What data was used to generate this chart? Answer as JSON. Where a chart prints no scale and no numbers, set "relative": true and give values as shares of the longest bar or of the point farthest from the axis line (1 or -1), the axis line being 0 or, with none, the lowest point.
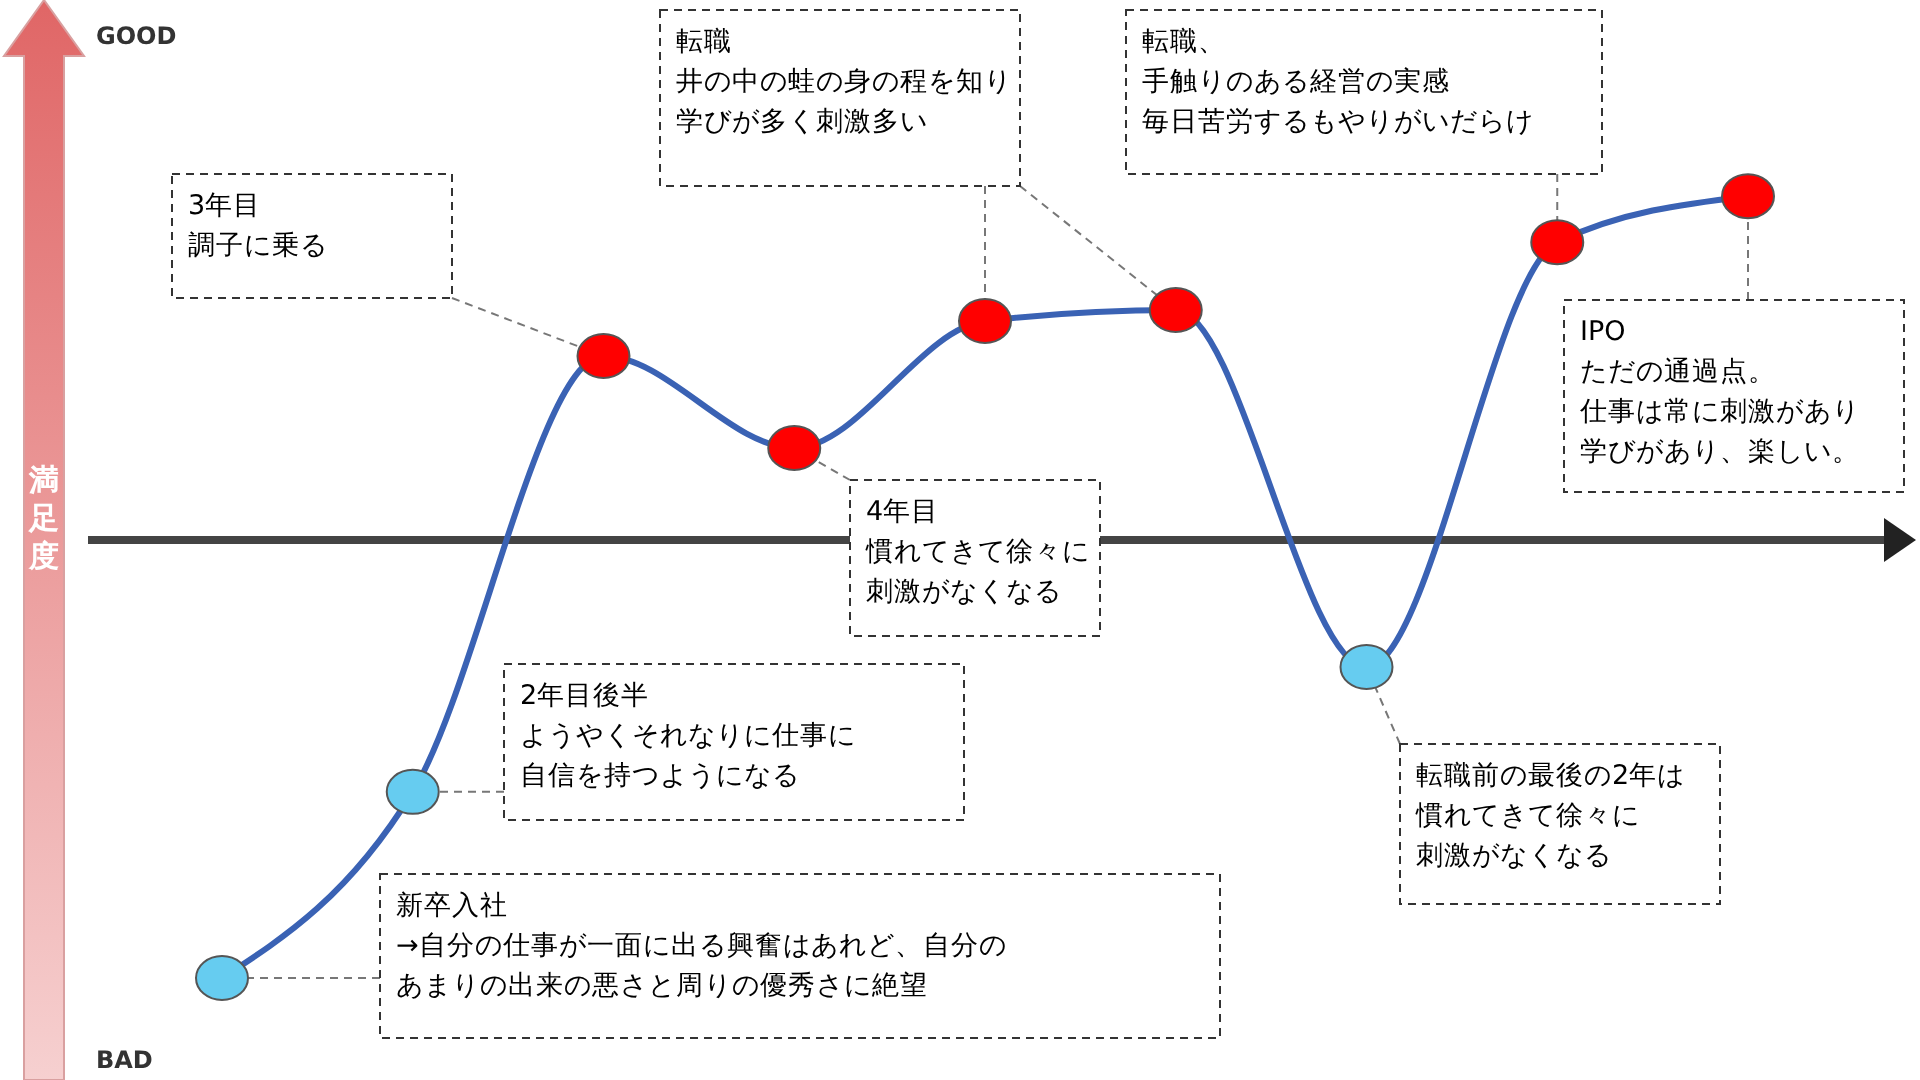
{
  "chart_data": {
    "type": "line",
    "relative": true,
    "ylabel": "満足度",
    "marker": "circle",
    "categories": [
      null,
      null,
      null,
      null,
      null,
      null,
      null,
      null,
      null
    ],
    "series": [
      {
        "color": "#3a62b4",
        "colors": [
          "#66ccf0",
          "#66ccf0",
          "#ff0000",
          "#ff0000",
          "#ff0000",
          "#ff0000",
          "#66ccf0",
          "#ff0000",
          "#ff0000"
        ],
        "values": [
          -1,
          -0.575,
          0.42,
          0.21,
          0.5,
          0.525,
          -0.29,
          0.68,
          0.785
        ]
      }
    ],
    "annotations": [
      "3年目調子に乗る",
      "転職井の中の蛙の身の程を知り学びが多く刺激多い",
      "転職、手触りのある経営の実感毎日苦労するもやりがいだらけ",
      "4年目慣れてきて徐々に刺激がなくなる",
      "IPOただの通過点。仕事は常に刺激があり学びがあり、楽しい。",
      "2年目後半ようやくそれなりに仕事に自信を持つようになる",
      "転職前の最後の2年は慣れてきて徐々に刺激がなくなる",
      "新卒入社→自分の仕事が一面に出る興奮はあれど、自分のあまりの出来の悪さと周りの優秀さに絶望",
      "GOOD",
      "BAD"
    ]
  }
}
